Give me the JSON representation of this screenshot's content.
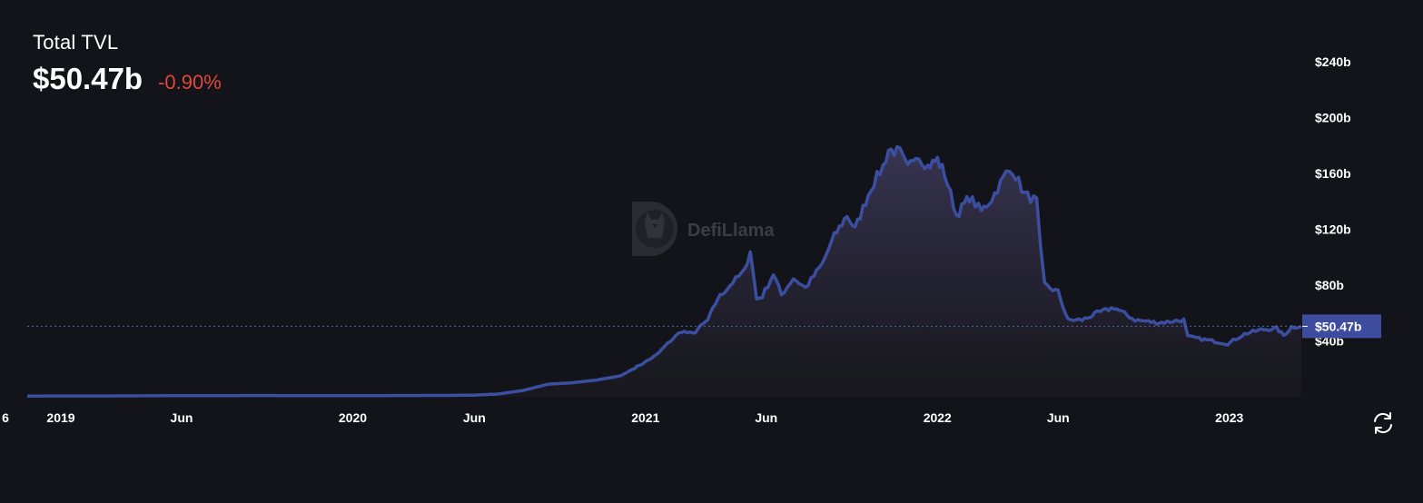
{
  "header": {
    "title": "Total TVL",
    "value": "$50.47b",
    "change": "-0.90%"
  },
  "watermark": {
    "text": "DefiLlama"
  },
  "current_marker": {
    "label": "$50.47b",
    "value": 50.47
  },
  "colors": {
    "background": "#131419",
    "line": "#3c4ea0",
    "area_top": "#3a3656",
    "negative": "#e0483e",
    "marker_bg": "#3d4c9e"
  },
  "icons": {
    "refresh": "refresh-icon"
  },
  "chart_data": {
    "type": "area",
    "title": "Total TVL",
    "xlabel": "",
    "ylabel": "",
    "y_unit": "$b",
    "ylim": [
      0,
      250
    ],
    "y_ticks": [
      40,
      80,
      120,
      160,
      200,
      240
    ],
    "y_tick_labels": [
      "$40b",
      "$80b",
      "$120b",
      "$160b",
      "$200b",
      "$240b"
    ],
    "x_ticks": [
      "2018-12-01",
      "2019-01-01",
      "2019-06-01",
      "2020-01-01",
      "2020-06-01",
      "2021-01-01",
      "2021-06-01",
      "2022-01-01",
      "2022-06-01",
      "2023-01-01"
    ],
    "x_tick_labels": [
      "6",
      "2019",
      "Jun",
      "2020",
      "Jun",
      "2021",
      "Jun",
      "2022",
      "Jun",
      "2023"
    ],
    "y_axis_position": "right",
    "grid": false,
    "series": [
      {
        "points": [
          [
            "2018-11-20",
            0.5
          ],
          [
            "2019-01-01",
            0.6
          ],
          [
            "2019-03-01",
            0.6
          ],
          [
            "2019-06-01",
            0.8
          ],
          [
            "2019-09-01",
            0.9
          ],
          [
            "2020-01-01",
            0.8
          ],
          [
            "2020-03-01",
            0.9
          ],
          [
            "2020-05-01",
            1.0
          ],
          [
            "2020-06-01",
            1.2
          ],
          [
            "2020-07-01",
            2.0
          ],
          [
            "2020-08-01",
            4.5
          ],
          [
            "2020-09-01",
            9.0
          ],
          [
            "2020-10-01",
            10.0
          ],
          [
            "2020-11-01",
            12.0
          ],
          [
            "2020-12-01",
            15.0
          ],
          [
            "2021-01-01",
            25.0
          ],
          [
            "2021-01-15",
            30.0
          ],
          [
            "2021-02-01",
            40.0
          ],
          [
            "2021-02-15",
            47.0
          ],
          [
            "2021-03-01",
            45.0
          ],
          [
            "2021-03-20",
            55.0
          ],
          [
            "2021-04-01",
            70.0
          ],
          [
            "2021-04-20",
            82.0
          ],
          [
            "2021-05-05",
            90.0
          ],
          [
            "2021-05-12",
            105.0
          ],
          [
            "2021-05-20",
            70.0
          ],
          [
            "2021-05-27",
            72.0
          ],
          [
            "2021-06-10",
            88.0
          ],
          [
            "2021-06-20",
            73.0
          ],
          [
            "2021-07-05",
            85.0
          ],
          [
            "2021-07-20",
            78.0
          ],
          [
            "2021-08-10",
            95.0
          ],
          [
            "2021-08-25",
            115.0
          ],
          [
            "2021-09-10",
            130.0
          ],
          [
            "2021-09-20",
            120.0
          ],
          [
            "2021-10-10",
            150.0
          ],
          [
            "2021-10-25",
            165.0
          ],
          [
            "2021-11-01",
            177.0
          ],
          [
            "2021-11-15",
            175.0
          ],
          [
            "2021-11-25",
            163.0
          ],
          [
            "2021-12-05",
            175.0
          ],
          [
            "2021-12-20",
            165.0
          ],
          [
            "2022-01-01",
            170.0
          ],
          [
            "2022-01-10",
            160.0
          ],
          [
            "2022-01-25",
            130.0
          ],
          [
            "2022-02-10",
            143.0
          ],
          [
            "2022-02-25",
            133.0
          ],
          [
            "2022-03-10",
            142.0
          ],
          [
            "2022-03-28",
            160.0
          ],
          [
            "2022-04-05",
            163.0
          ],
          [
            "2022-04-20",
            145.0
          ],
          [
            "2022-05-05",
            140.0
          ],
          [
            "2022-05-10",
            105.0
          ],
          [
            "2022-05-15",
            80.0
          ],
          [
            "2022-06-01",
            75.0
          ],
          [
            "2022-06-13",
            55.0
          ],
          [
            "2022-07-01",
            55.0
          ],
          [
            "2022-07-20",
            60.0
          ],
          [
            "2022-08-10",
            64.0
          ],
          [
            "2022-09-05",
            55.0
          ],
          [
            "2022-10-05",
            53.0
          ],
          [
            "2022-11-05",
            55.0
          ],
          [
            "2022-11-10",
            43.0
          ],
          [
            "2022-12-01",
            41.0
          ],
          [
            "2022-12-30",
            38.0
          ],
          [
            "2023-01-20",
            45.0
          ],
          [
            "2023-02-10",
            48.0
          ],
          [
            "2023-03-01",
            49.0
          ],
          [
            "2023-03-10",
            44.0
          ],
          [
            "2023-03-20",
            50.0
          ],
          [
            "2023-04-01",
            50.47
          ]
        ]
      }
    ]
  }
}
